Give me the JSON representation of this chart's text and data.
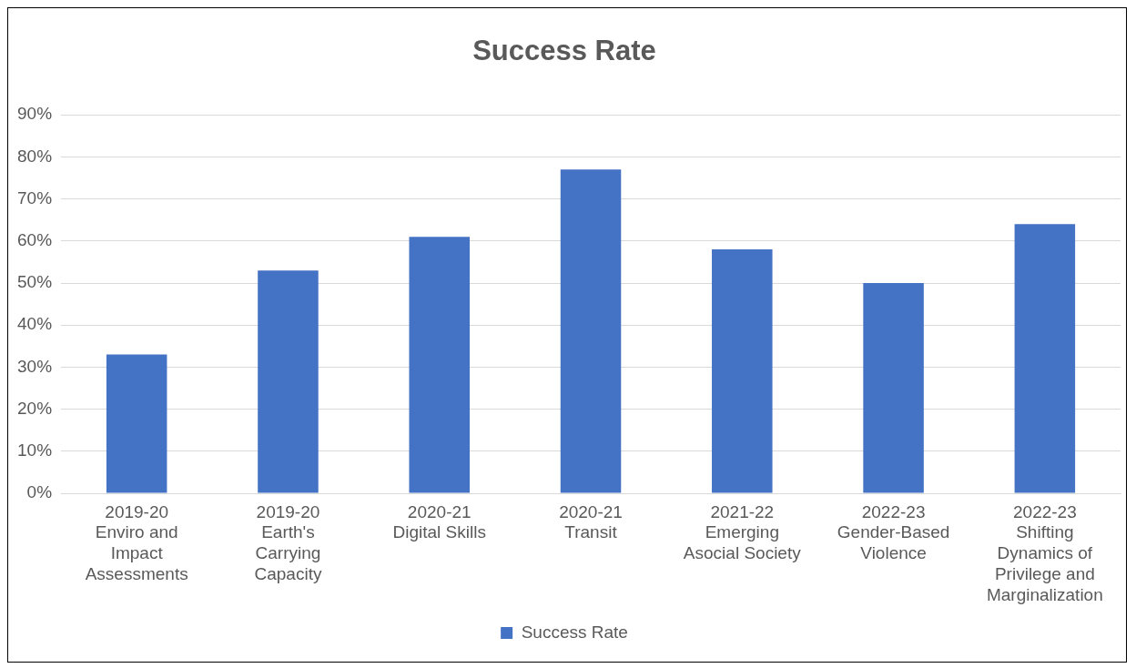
{
  "chart_data": {
    "type": "bar",
    "title": "Success Rate",
    "categories": [
      "2019-20 Enviro and Impact Assessments",
      "2019-20 Earth's Carrying Capacity",
      "2020-21 Digital Skills",
      "2020-21 Transit",
      "2021-22 Emerging Asocial Society",
      "2022-23 Gender-Based Violence",
      "2022-23 Shifting Dynamics of Privilege and Marginalization"
    ],
    "series": [
      {
        "name": "Success Rate",
        "color": "#4472c4",
        "values": [
          33,
          53,
          61,
          77,
          58,
          50,
          64
        ]
      }
    ],
    "ylim": [
      0,
      90
    ],
    "yticks": [
      {
        "value": 0,
        "label": "0%"
      },
      {
        "value": 10,
        "label": "10%"
      },
      {
        "value": 20,
        "label": "20%"
      },
      {
        "value": 30,
        "label": "30%"
      },
      {
        "value": 40,
        "label": "40%"
      },
      {
        "value": 50,
        "label": "50%"
      },
      {
        "value": 60,
        "label": "60%"
      },
      {
        "value": 70,
        "label": "70%"
      },
      {
        "value": 80,
        "label": "80%"
      },
      {
        "value": 90,
        "label": "90%"
      }
    ],
    "grid": "y",
    "legend": "bottom"
  }
}
